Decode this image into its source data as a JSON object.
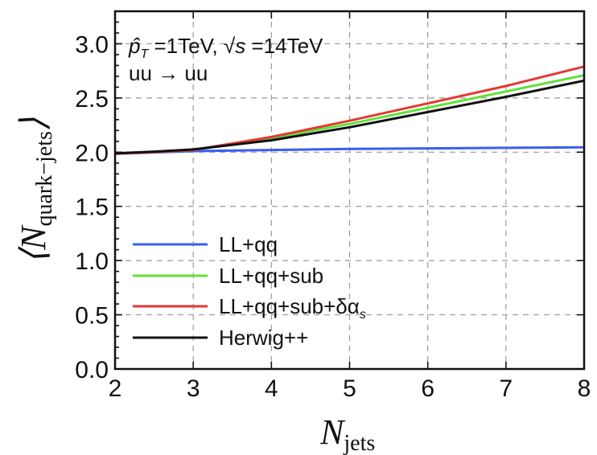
{
  "chart_data": {
    "type": "line",
    "xlabel": {
      "main": "N",
      "sub": "jets"
    },
    "ylabel": {
      "open": "⟨",
      "main": "N",
      "sub": "quark−jets",
      "close": "⟩"
    },
    "xlim": [
      2,
      8
    ],
    "ylim": [
      0,
      3.3
    ],
    "xticks": [
      2,
      3,
      4,
      5,
      6,
      7,
      8
    ],
    "yticks": [
      "0.0",
      "0.5",
      "1.0",
      "1.5",
      "2.0",
      "2.5",
      "3.0"
    ],
    "grid": true,
    "annotations": {
      "line1_p": "p̂",
      "line1_p_sub": "T",
      "line1_a": " =1TeV, ",
      "line1_sqrt": "√",
      "line1_s": "s",
      "line1_b": " =14TeV",
      "line2": "uu → uu"
    },
    "legend_position": "lower-left",
    "series": [
      {
        "name": "LL+qq",
        "color": "#3a5df5",
        "x": [
          2,
          3,
          4,
          5,
          6,
          7,
          8
        ],
        "y": [
          1.985,
          2.01,
          2.02,
          2.03,
          2.035,
          2.04,
          2.045
        ]
      },
      {
        "name": "LL+qq+sub",
        "color": "#62e03a",
        "x": [
          2,
          2.5,
          3,
          4,
          5,
          6,
          7,
          8
        ],
        "y": [
          1.985,
          2.0,
          2.02,
          2.13,
          2.26,
          2.41,
          2.56,
          2.71
        ]
      },
      {
        "name": "LL+qq+sub+δα",
        "name_sub": "s",
        "color": "#e23a34",
        "x": [
          2,
          2.5,
          3,
          4,
          5,
          6,
          7,
          8
        ],
        "y": [
          1.985,
          2.0,
          2.02,
          2.14,
          2.29,
          2.45,
          2.61,
          2.79
        ]
      },
      {
        "name": "Herwig++",
        "color": "#111111",
        "x": [
          2,
          2.5,
          3,
          4,
          5,
          6,
          7,
          8
        ],
        "y": [
          1.99,
          2.005,
          2.025,
          2.11,
          2.23,
          2.37,
          2.51,
          2.66
        ]
      }
    ]
  }
}
